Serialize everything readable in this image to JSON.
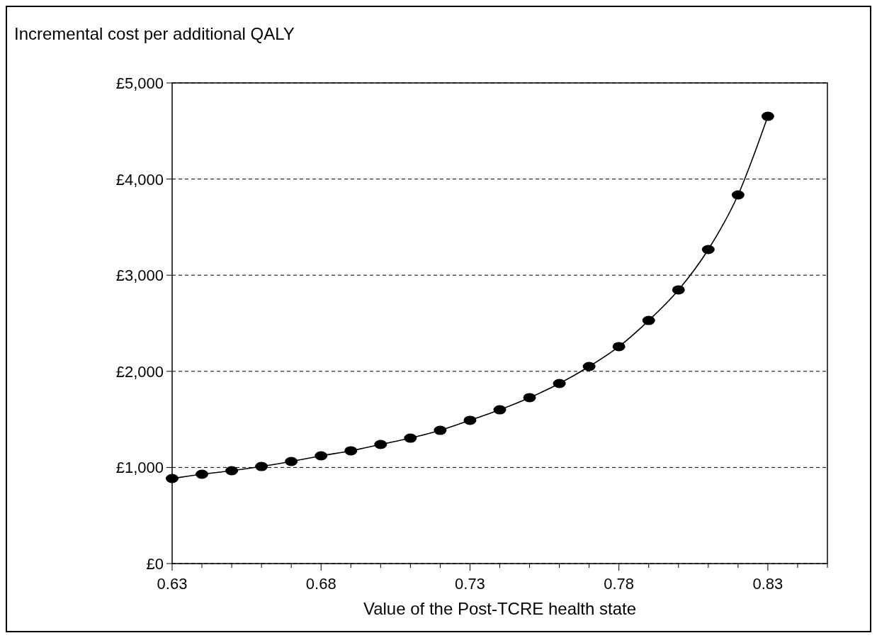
{
  "chart_data": {
    "type": "line",
    "ylabel": "Incremental cost per additional QALY",
    "xlabel": "Value of the Post-TCRE health state",
    "x": [
      0.63,
      0.64,
      0.65,
      0.66,
      0.67,
      0.68,
      0.69,
      0.7,
      0.71,
      0.72,
      0.73,
      0.74,
      0.75,
      0.76,
      0.77,
      0.78,
      0.79,
      0.8,
      0.81,
      0.82,
      0.83
    ],
    "series": [
      {
        "color": "#000000",
        "values": [
          885,
          929,
          966,
          1010,
          1062,
          1121,
          1173,
          1239,
          1305,
          1386,
          1490,
          1600,
          1726,
          1873,
          2050,
          2257,
          2529,
          2847,
          3267,
          3835,
          4653
        ]
      }
    ],
    "xlim": [
      0.63,
      0.85
    ],
    "xticks": [
      0.63,
      {
        "value": 0.64,
        "label": null
      },
      {
        "value": 0.65,
        "label": null
      },
      {
        "value": 0.66,
        "label": null
      },
      {
        "value": 0.67,
        "label": null
      },
      0.68,
      {
        "value": 0.69,
        "label": null
      },
      {
        "value": 0.7,
        "label": null
      },
      {
        "value": 0.71,
        "label": null
      },
      {
        "value": 0.72,
        "label": null
      },
      0.73,
      {
        "value": 0.74,
        "label": null
      },
      {
        "value": 0.75,
        "label": null
      },
      {
        "value": 0.76,
        "label": null
      },
      {
        "value": 0.77,
        "label": null
      },
      0.78,
      {
        "value": 0.79,
        "label": null
      },
      {
        "value": 0.8,
        "label": null
      },
      {
        "value": 0.81,
        "label": null
      },
      {
        "value": 0.82,
        "label": null
      },
      0.83,
      {
        "value": 0.84,
        "label": null
      },
      {
        "value": 0.85,
        "label": null
      }
    ],
    "ylim": [
      0,
      5000
    ],
    "yticks": [
      {
        "value": 0,
        "label": "£0"
      },
      {
        "value": 1000,
        "label": "£1,000"
      },
      {
        "value": 2000,
        "label": "£2,000"
      },
      {
        "value": 3000,
        "label": "£3,000"
      },
      {
        "value": 4000,
        "label": "£4,000"
      },
      {
        "value": 5000,
        "label": "£5,000"
      }
    ],
    "grid": "y",
    "marker": "circle",
    "line_style": "solid"
  }
}
